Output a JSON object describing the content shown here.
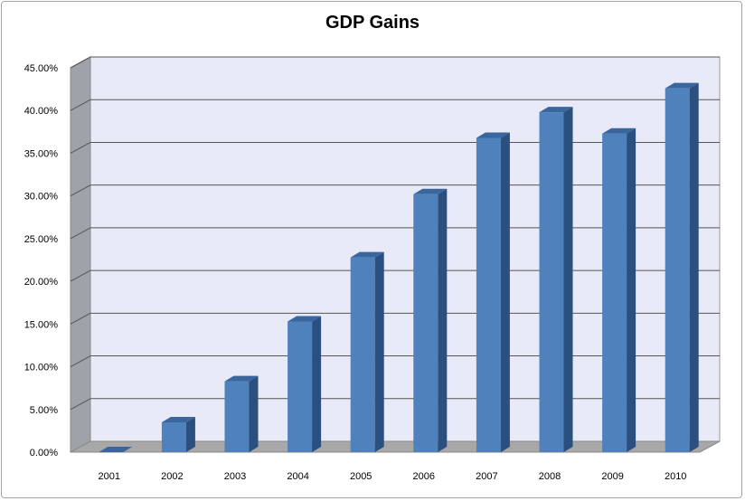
{
  "chart_data": {
    "type": "bar",
    "title": "GDP Gains",
    "categories": [
      "2001",
      "2002",
      "2003",
      "2004",
      "2005",
      "2006",
      "2007",
      "2008",
      "2009",
      "2010"
    ],
    "values": [
      0.0,
      3.5,
      8.3,
      15.3,
      22.8,
      30.2,
      36.8,
      39.8,
      37.3,
      42.6
    ],
    "ylim": [
      0,
      45
    ],
    "yticks": [
      "0.00%",
      "5.00%",
      "10.00%",
      "15.00%",
      "20.00%",
      "25.00%",
      "30.00%",
      "35.00%",
      "40.00%",
      "45.00%"
    ],
    "xlabel": "",
    "ylabel": "",
    "grid": true,
    "legend": "none",
    "colors": {
      "bar_front": "#4f81bd",
      "bar_side": "#2b4f7e",
      "bar_top": "#3a669e",
      "plot_background": "#e8eaf7",
      "left_wall": "#9fa2a8",
      "floor": "#a8a8a8",
      "grid": "#555555"
    }
  }
}
